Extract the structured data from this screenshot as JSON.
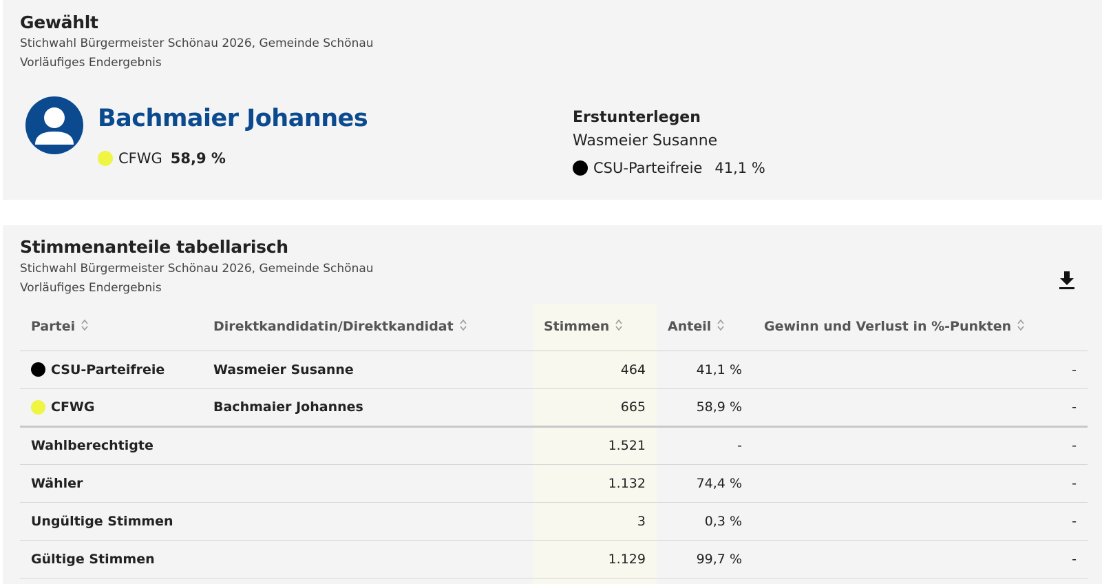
{
  "elected": {
    "heading": "Gewählt",
    "subtitle": "Stichwahl Bürgermeister Schönau 2026, Gemeinde Schönau",
    "status": "Vorläufiges Endergebnis",
    "winner_name": "Bachmaier Johannes",
    "winner_party": "CFWG",
    "winner_pct": "58,9 %",
    "winner_color": "#eef542",
    "runner_label": "Erstunterlegen",
    "runner_name": "Wasmeier Susanne",
    "runner_party": "CSU-Parteifreie",
    "runner_pct": "41,1 %",
    "runner_color": "#000000",
    "avatar_icon": "person-icon"
  },
  "table_section": {
    "heading": "Stimmenanteile tabellarisch",
    "subtitle": "Stichwahl Bürgermeister Schönau 2026, Gemeinde Schönau",
    "status": "Vorläufiges Endergebnis",
    "download_icon": "download-icon",
    "columns": [
      "Partei",
      "Direktkandidatin/Direktkandidat",
      "Stimmen",
      "Anteil",
      "Gewinn und Verlust in %-Punkten"
    ],
    "party_rows": [
      {
        "party": "CSU-Parteifreie",
        "color": "#000000",
        "candidate": "Wasmeier Susanne",
        "votes": "464",
        "share": "41,1 %",
        "change": "-"
      },
      {
        "party": "CFWG",
        "color": "#eef542",
        "candidate": "Bachmaier Johannes",
        "votes": "665",
        "share": "58,9 %",
        "change": "-"
      }
    ],
    "summary_rows": [
      {
        "label": "Wahlberechtigte",
        "votes": "1.521",
        "share": "-",
        "change": "-"
      },
      {
        "label": "Wähler",
        "votes": "1.132",
        "share": "74,4 %",
        "change": "-"
      },
      {
        "label": "Ungültige Stimmen",
        "votes": "3",
        "share": "0,3 %",
        "change": "-"
      },
      {
        "label": "Gültige Stimmen",
        "votes": "1.129",
        "share": "99,7 %",
        "change": "-"
      }
    ]
  }
}
